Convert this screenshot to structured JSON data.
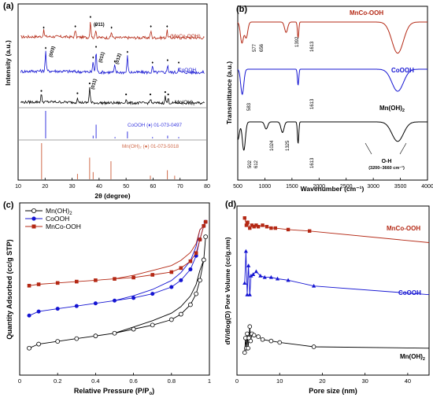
{
  "figure": {
    "panel_letters": [
      "(a)",
      "(b)",
      "(c)",
      "(d)"
    ]
  },
  "colors": {
    "mn": "#000000",
    "co": "#1414d2",
    "mnco": "#b42814",
    "refblue": "#3a3ae0",
    "refred": "#d06a4a"
  },
  "chart_data": [
    {
      "panel": "(a)",
      "type": "line",
      "xlabel": "2θ (degree)",
      "ylabel": "Intensity (a.u.)",
      "xlim": [
        10,
        80
      ],
      "xticks": [
        10,
        20,
        30,
        40,
        50,
        60,
        70,
        80
      ],
      "series": [
        {
          "name": "(MnCo-OOH)",
          "color": "#b42814",
          "peaks": [
            [
              19.5,
              0.25
            ],
            [
              31.2,
              0.3
            ],
            [
              36.8,
              0.7
            ],
            [
              38.8,
              0.35
            ],
            [
              44.6,
              0.25
            ],
            [
              59.2,
              0.3
            ],
            [
              65.2,
              0.3
            ]
          ]
        },
        {
          "name": "CoOOH",
          "color": "#1414d2",
          "peaks": [
            [
              20.2,
              0.75
            ],
            [
              37.8,
              0.4
            ],
            [
              38.9,
              0.8
            ],
            [
              45.8,
              0.25
            ],
            [
              50.5,
              0.6
            ],
            [
              59.8,
              0.2
            ],
            [
              65.4,
              0.3
            ],
            [
              69.5,
              0.2
            ]
          ]
        },
        {
          "name": "Mn(OH)",
          "color": "#000000",
          "peaks": [
            [
              18.6,
              0.35
            ],
            [
              32.0,
              0.25
            ],
            [
              36.5,
              0.7
            ],
            [
              50.0,
              0.2
            ],
            [
              59.0,
              0.2
            ],
            [
              64.5,
              0.3
            ],
            [
              65.6,
              0.2
            ]
          ]
        }
      ],
      "peak_labels": [
        "(011)",
        "(003)",
        "(011)",
        "(012)",
        "(011)"
      ],
      "reference_cards": [
        {
          "label": "CoOOH (♦) 01-073-0497",
          "color": "#3a3ae0",
          "sticks": [
            [
              20.2,
              1.0
            ],
            [
              37.8,
              0.1
            ],
            [
              38.9,
              0.5
            ],
            [
              45.9,
              0.05
            ],
            [
              50.5,
              0.25
            ],
            [
              59.8,
              0.05
            ],
            [
              65.4,
              0.1
            ],
            [
              69.5,
              0.05
            ]
          ]
        },
        {
          "label": "Mn(OH)₂ (●) 01-073-5018",
          "color": "#d06a4a",
          "sticks": [
            [
              18.7,
              1.0
            ],
            [
              32.0,
              0.15
            ],
            [
              36.5,
              0.6
            ],
            [
              37.8,
              0.2
            ],
            [
              44.4,
              0.5
            ],
            [
              59.0,
              0.1
            ],
            [
              65.3,
              0.25
            ],
            [
              68.0,
              0.1
            ]
          ]
        }
      ]
    },
    {
      "panel": "(b)",
      "type": "line",
      "xlabel": "Wavenumber (cm⁻¹)",
      "ylabel": "Transmittance (a.u.)",
      "xlim": [
        500,
        4000
      ],
      "xticks": [
        500,
        1000,
        1500,
        2000,
        2500,
        3000,
        3500,
        4000
      ],
      "series": [
        {
          "name": "MnCo-OOH",
          "color": "#b42814",
          "dips": [
            [
              577,
              0.6
            ],
            [
              656,
              0.45
            ],
            [
              1392,
              0.3
            ],
            [
              1613,
              0.45
            ],
            [
              3450,
              0.9
            ]
          ]
        },
        {
          "name": "CoOOH",
          "color": "#1414d2",
          "dips": [
            [
              583,
              0.8
            ],
            [
              1613,
              0.5
            ],
            [
              3450,
              0.7
            ]
          ]
        },
        {
          "name": "Mn(OH)",
          "color": "#000000",
          "dips": [
            [
              502,
              0.5
            ],
            [
              612,
              0.8
            ],
            [
              1024,
              0.2
            ],
            [
              1325,
              0.3
            ],
            [
              1613,
              0.6
            ],
            [
              3450,
              0.55
            ]
          ]
        }
      ],
      "annotations": [
        "577",
        "656",
        "1392",
        "1613",
        "583",
        "1613",
        "502",
        "612",
        "1024",
        "1325",
        "1613",
        "O-H",
        "(3200−3660 cm⁻¹)"
      ]
    },
    {
      "panel": "(c)",
      "type": "line",
      "xlabel": "Relative Pressure (P/P",
      "ylabel": "Quantity Adsorbed (cc/g STP)",
      "xlim": [
        0,
        1.0
      ],
      "xticks": [
        0.0,
        0.2,
        0.4,
        0.6,
        0.8,
        1.0
      ],
      "legend": "top-left",
      "series": [
        {
          "name": "Mn(OH)",
          "color": "#000000",
          "marker": "circle-open",
          "x": [
            0.05,
            0.1,
            0.2,
            0.3,
            0.4,
            0.5,
            0.6,
            0.7,
            0.8,
            0.85,
            0.9,
            0.93,
            0.95,
            0.97,
            0.98
          ],
          "y": [
            0.1,
            0.13,
            0.15,
            0.17,
            0.19,
            0.21,
            0.24,
            0.27,
            0.31,
            0.35,
            0.42,
            0.5,
            0.6,
            0.75,
            0.92
          ]
        },
        {
          "name": "CoOOH",
          "color": "#1414d2",
          "marker": "circle",
          "x": [
            0.05,
            0.1,
            0.2,
            0.3,
            0.4,
            0.5,
            0.6,
            0.7,
            0.8,
            0.85,
            0.9,
            0.93,
            0.95,
            0.97,
            0.98
          ],
          "y": [
            0.34,
            0.37,
            0.39,
            0.41,
            0.43,
            0.45,
            0.47,
            0.5,
            0.55,
            0.6,
            0.68,
            0.78,
            0.9,
            1.0,
            1.03
          ]
        },
        {
          "name": "MnCo-OOH",
          "color": "#b42814",
          "marker": "square",
          "x": [
            0.05,
            0.1,
            0.2,
            0.3,
            0.4,
            0.5,
            0.6,
            0.7,
            0.8,
            0.85,
            0.9,
            0.93,
            0.95,
            0.97,
            0.98
          ],
          "y": [
            0.56,
            0.57,
            0.58,
            0.59,
            0.6,
            0.61,
            0.62,
            0.64,
            0.66,
            0.69,
            0.74,
            0.8,
            0.9,
            1.0,
            1.03
          ]
        }
      ]
    },
    {
      "panel": "(d)",
      "type": "line",
      "xlabel": "Pore size (nm)",
      "ylabel": "dV/dlog(D) Pore Volume (cc/g.nm)",
      "xlim": [
        0,
        45
      ],
      "xticks": [
        0,
        10,
        20,
        30,
        40
      ],
      "series": [
        {
          "name": "MnCo-OOH",
          "color": "#b42814",
          "marker": "square",
          "x": [
            1.8,
            2.2,
            2.5,
            3,
            3.5,
            4,
            4.5,
            5,
            6,
            7,
            8,
            9,
            12,
            17,
            45
          ],
          "y": [
            0.95,
            0.9,
            0.92,
            0.88,
            0.9,
            0.89,
            0.9,
            0.89,
            0.9,
            0.89,
            0.88,
            0.88,
            0.87,
            0.86,
            0.78
          ]
        },
        {
          "name": "CoOOH",
          "color": "#1414d2",
          "marker": "triangle",
          "x": [
            1.8,
            2.1,
            2.4,
            2.7,
            3.0,
            3.3,
            3.8,
            4.5,
            5.5,
            6.5,
            8,
            9.5,
            12,
            18,
            45
          ],
          "y": [
            0.5,
            0.72,
            0.42,
            0.62,
            0.42,
            0.55,
            0.56,
            0.58,
            0.55,
            0.54,
            0.54,
            0.53,
            0.52,
            0.48,
            0.42
          ]
        },
        {
          "name": "Mn(OH)",
          "color": "#000000",
          "marker": "circle-open",
          "x": [
            1.8,
            2.0,
            2.2,
            2.4,
            2.6,
            2.8,
            3.0,
            3.2,
            3.5,
            4,
            5,
            6,
            8,
            10,
            18,
            45
          ],
          "y": [
            0.02,
            0.12,
            0.05,
            0.15,
            0.05,
            0.12,
            0.2,
            0.1,
            0.15,
            0.14,
            0.13,
            0.11,
            0.1,
            0.09,
            0.06,
            0.05
          ]
        }
      ]
    }
  ]
}
